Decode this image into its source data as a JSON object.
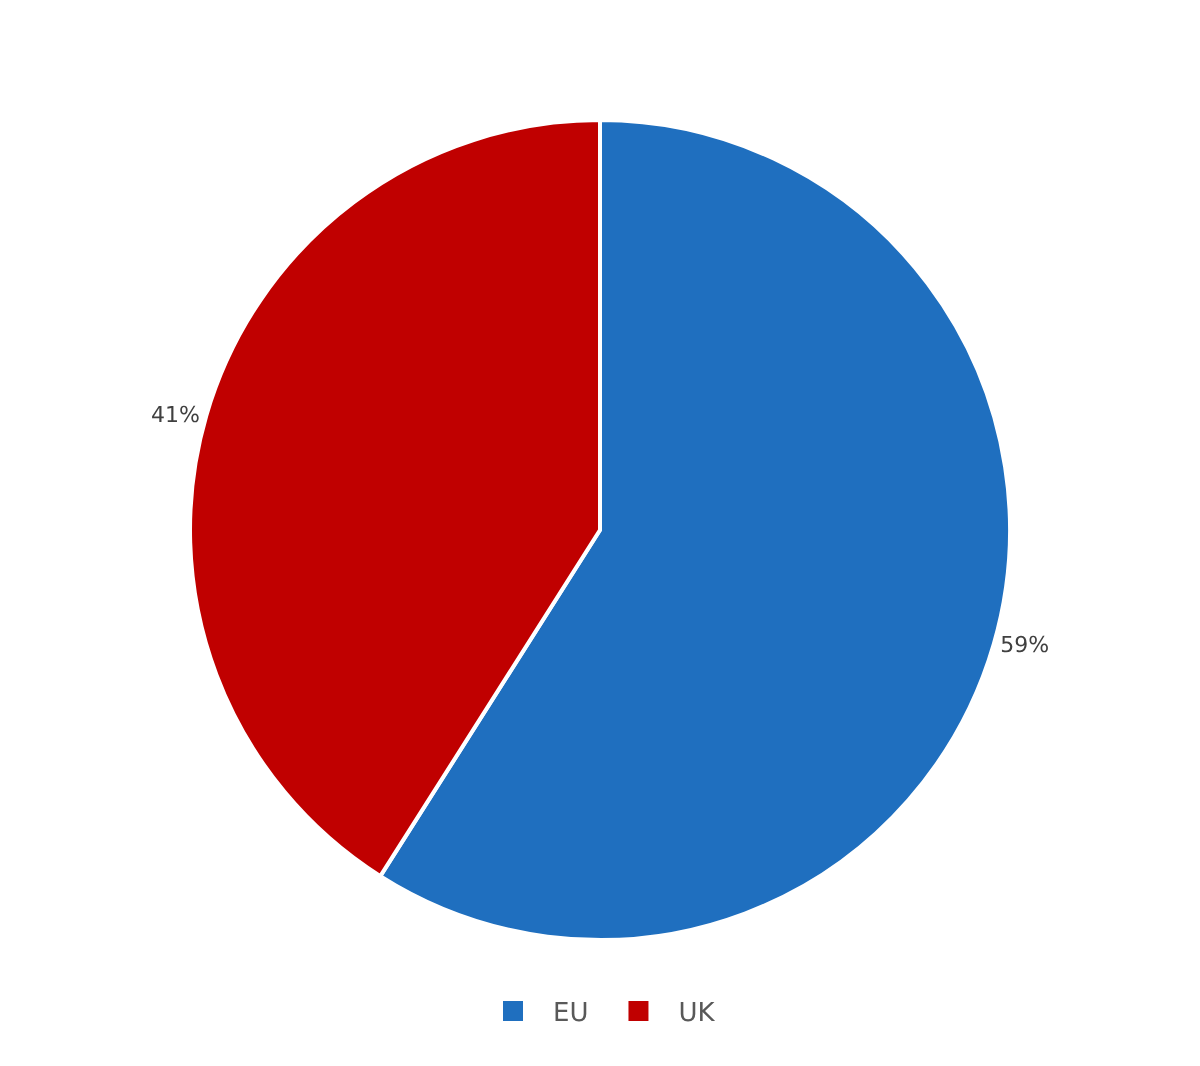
{
  "chart_data": {
    "type": "pie",
    "categories": [
      "EU",
      "UK"
    ],
    "values": [
      59,
      41
    ],
    "colors": [
      "#1f6fbf",
      "#c00000"
    ],
    "value_labels": [
      "59%",
      "41%"
    ],
    "legend": "bottom"
  }
}
